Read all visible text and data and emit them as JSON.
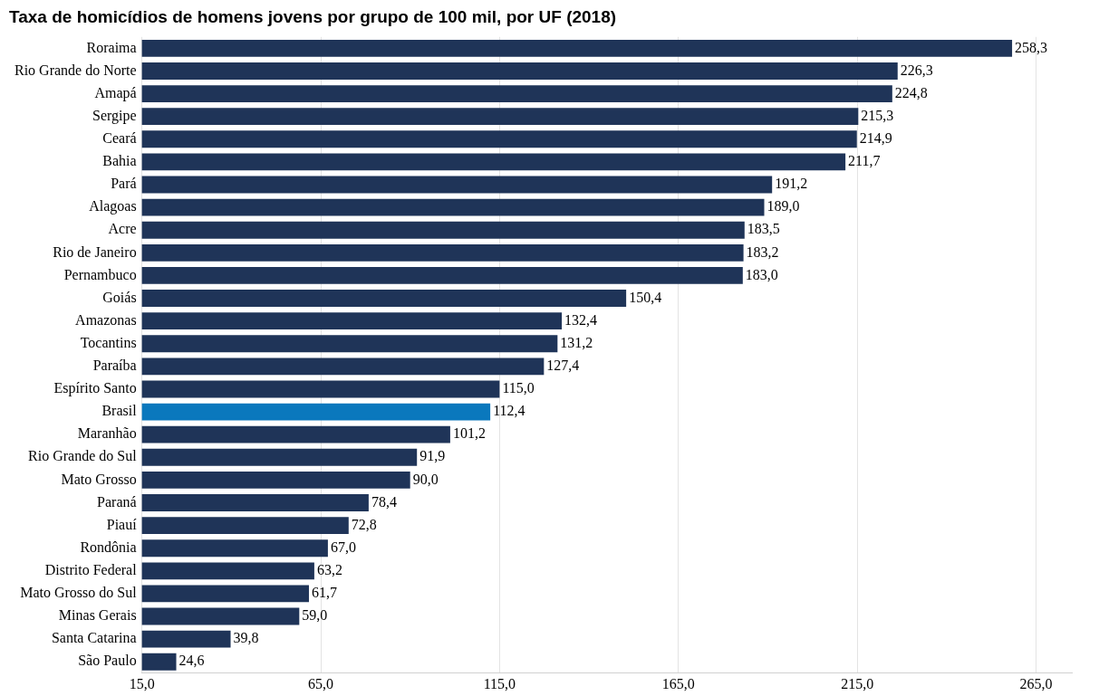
{
  "chart_data": {
    "type": "bar",
    "orientation": "horizontal",
    "title": "Taxa de homicídios de homens jovens por grupo de 100 mil, por UF (2018)",
    "categories": [
      "Roraima",
      "Rio Grande do Norte",
      "Amapá",
      "Sergipe",
      "Ceará",
      "Bahia",
      "Pará",
      "Alagoas",
      "Acre",
      "Rio de Janeiro",
      "Pernambuco",
      "Goiás",
      "Amazonas",
      "Tocantins",
      "Paraíba",
      "Espírito Santo",
      "Brasil",
      "Maranhão",
      "Rio Grande do Sul",
      "Mato Grosso",
      "Paraná",
      "Piauí",
      "Rondônia",
      "Distrito Federal",
      "Mato Grosso do Sul",
      "Minas Gerais",
      "Santa Catarina",
      "São Paulo"
    ],
    "values": [
      258.3,
      226.3,
      224.8,
      215.3,
      214.9,
      211.7,
      191.2,
      189.0,
      183.5,
      183.2,
      183.0,
      150.4,
      132.4,
      131.2,
      127.4,
      115.0,
      112.4,
      101.2,
      91.9,
      90.0,
      78.4,
      72.8,
      67.0,
      63.2,
      61.7,
      59.0,
      39.8,
      24.6
    ],
    "value_labels": [
      "258,3",
      "226,3",
      "224,8",
      "215,3",
      "214,9",
      "211,7",
      "191,2",
      "189,0",
      "183,5",
      "183,2",
      "183,0",
      "150,4",
      "132,4",
      "131,2",
      "127,4",
      "115,0",
      "112,4",
      "101,2",
      "91,9",
      "90,0",
      "78,4",
      "72,8",
      "67,0",
      "63,2",
      "61,7",
      "59,0",
      "39,8",
      "24,6"
    ],
    "colors": [
      "#1f3458",
      "#1f3458",
      "#1f3458",
      "#1f3458",
      "#1f3458",
      "#1f3458",
      "#1f3458",
      "#1f3458",
      "#1f3458",
      "#1f3458",
      "#1f3458",
      "#1f3458",
      "#1f3458",
      "#1f3458",
      "#1f3458",
      "#1f3458",
      "#0a78bd",
      "#1f3458",
      "#1f3458",
      "#1f3458",
      "#1f3458",
      "#1f3458",
      "#1f3458",
      "#1f3458",
      "#1f3458",
      "#1f3458",
      "#1f3458",
      "#1f3458"
    ],
    "xlim": [
      15,
      275
    ],
    "xticks": [
      {
        "value": 15,
        "label": "15,0"
      },
      {
        "value": 65,
        "label": "65,0"
      },
      {
        "value": 115,
        "label": "115,0"
      },
      {
        "value": 165,
        "label": "165,0"
      },
      {
        "value": 215,
        "label": "215,0"
      },
      {
        "value": 265,
        "label": "265,0"
      }
    ],
    "grid": "x",
    "legend": false
  }
}
